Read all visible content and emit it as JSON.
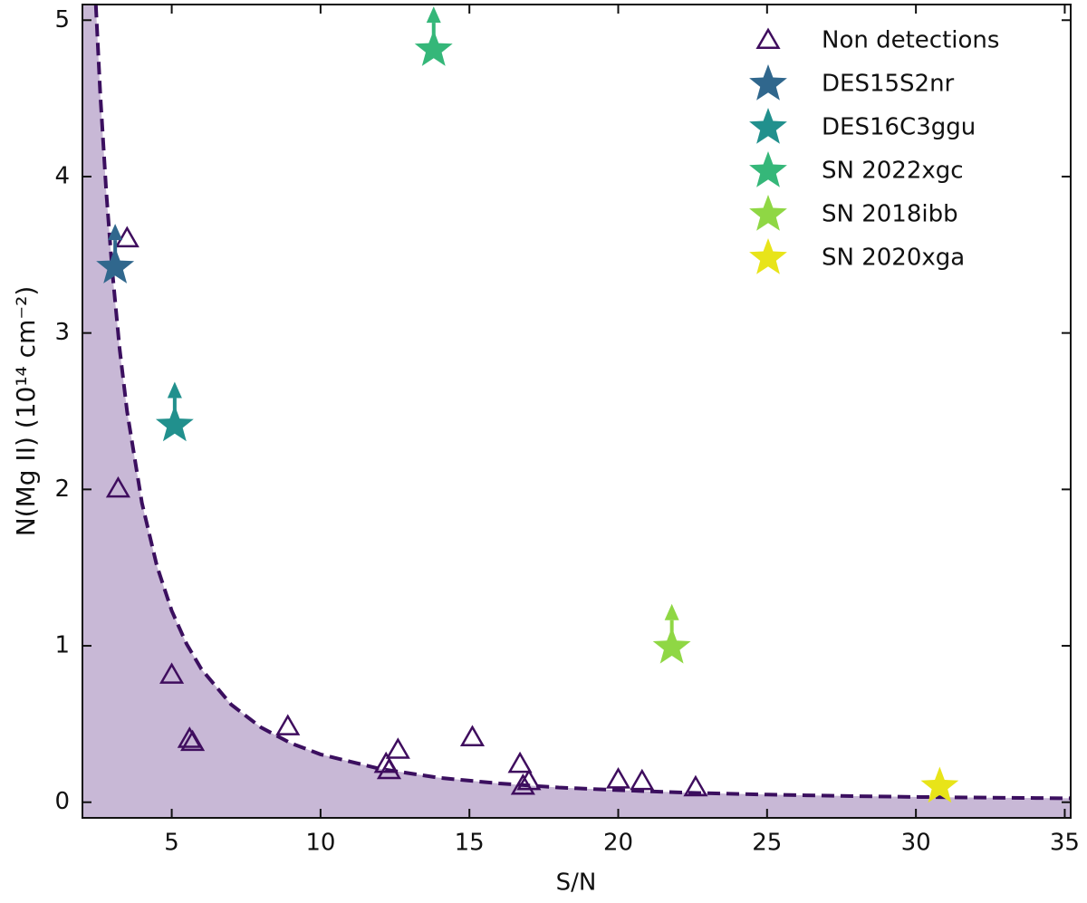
{
  "chart_data": {
    "type": "scatter",
    "xlabel": "S/N",
    "ylabel": "N(Mg II) (10¹⁴ cm⁻²)",
    "xlim": [
      2,
      35.2
    ],
    "ylim": [
      -0.1,
      5.1
    ],
    "xticks": [
      5,
      10,
      15,
      20,
      25,
      30,
      35
    ],
    "yticks": [
      0,
      1,
      2,
      3,
      4,
      5
    ],
    "legend": "upper right",
    "curve": {
      "color": "#3b0f5f",
      "fill": "#c8b8d6",
      "x": [
        2.45,
        2.6,
        2.8,
        3,
        3.25,
        3.5,
        4,
        4.5,
        5,
        5.5,
        6,
        7,
        8,
        9,
        10,
        12,
        14,
        16,
        18,
        20,
        22.5,
        25,
        27.5,
        30,
        32.5,
        35.2
      ],
      "y": [
        5.098,
        4.527,
        3.903,
        3.4,
        2.897,
        2.498,
        1.913,
        1.511,
        1.224,
        1.012,
        0.85,
        0.624,
        0.478,
        0.378,
        0.306,
        0.213,
        0.156,
        0.12,
        0.094,
        0.077,
        0.06,
        0.049,
        0.04,
        0.034,
        0.029,
        0.025
      ]
    },
    "series": [
      {
        "name": "Non detections",
        "marker": "triangle",
        "color": "#3f0d5e",
        "x": [
          3.5,
          3.2,
          5.0,
          5.6,
          5.7,
          8.9,
          12.2,
          12.3,
          12.6,
          15.1,
          16.7,
          16.8,
          17.0,
          20.0,
          20.8,
          22.6
        ],
        "values": [
          3.6,
          2.0,
          0.81,
          0.4,
          0.38,
          0.48,
          0.24,
          0.2,
          0.33,
          0.41,
          0.24,
          0.1,
          0.13,
          0.14,
          0.13,
          0.09
        ]
      },
      {
        "name": "DES15S2nr",
        "marker": "star",
        "color": "#30678d",
        "lower_limit": true,
        "x": [
          3.1
        ],
        "values": [
          3.42
        ]
      },
      {
        "name": "DES16C3ggu",
        "marker": "star",
        "color": "#21908d",
        "lower_limit": true,
        "x": [
          5.1
        ],
        "values": [
          2.41
        ]
      },
      {
        "name": "SN 2022xgc",
        "marker": "star",
        "color": "#35b779",
        "lower_limit": true,
        "x": [
          13.8
        ],
        "values": [
          4.81
        ]
      },
      {
        "name": "SN 2018ibb",
        "marker": "star",
        "color": "#8fd744",
        "lower_limit": true,
        "x": [
          21.8
        ],
        "values": [
          0.99
        ]
      },
      {
        "name": "SN 2020xga",
        "marker": "star",
        "color": "#e8e419",
        "lower_limit": false,
        "x": [
          30.8
        ],
        "values": [
          0.1
        ]
      }
    ]
  }
}
